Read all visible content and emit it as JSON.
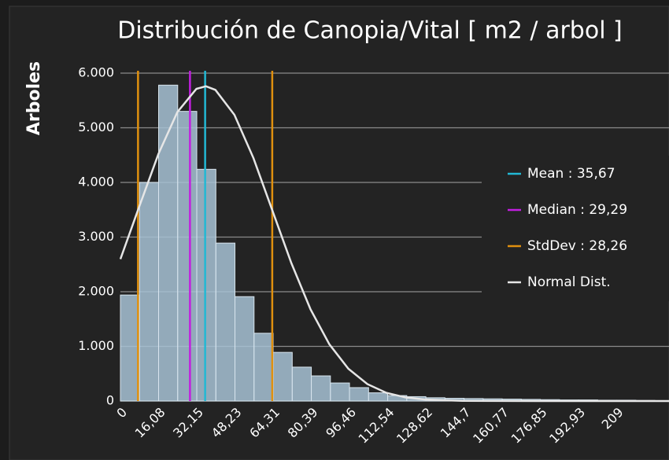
{
  "chart_data": {
    "type": "histogram",
    "title": "Distribución de Canopia/Vital [ m2 / arbol ]",
    "y_label": "Arboles",
    "bins": [
      0,
      8.04,
      16.08,
      24.12,
      32.15,
      40.19,
      48.23,
      56.27,
      64.31,
      72.35,
      80.39,
      88.43,
      96.46,
      104.5,
      112.54,
      120.58,
      128.62,
      136.66,
      144.7,
      152.74,
      160.77,
      168.81,
      176.85,
      184.89,
      192.93,
      200.97,
      209,
      217.04,
      225.08
    ],
    "values": [
      1940,
      4000,
      5780,
      5300,
      4240,
      2890,
      1910,
      1240,
      890,
      620,
      460,
      330,
      245,
      150,
      100,
      80,
      60,
      50,
      45,
      40,
      35,
      30,
      25,
      20,
      20,
      15,
      15,
      10
    ],
    "color": "#a7c2d5",
    "xlim": [
      0,
      231
    ],
    "xticks": [
      0,
      {
        "value": 16.08,
        "label": "16,08"
      },
      {
        "value": 32.15,
        "label": "32,15"
      },
      {
        "value": 48.23,
        "label": "48,23"
      },
      {
        "value": 64.31,
        "label": "64,31"
      },
      {
        "value": 80.39,
        "label": "80,39"
      },
      {
        "value": 96.46,
        "label": "96,46"
      },
      {
        "value": 112.54,
        "label": "112,54"
      },
      {
        "value": 128.62,
        "label": "128,62"
      },
      {
        "value": 144.7,
        "label": "144,7"
      },
      {
        "value": 160.77,
        "label": "160,77"
      },
      {
        "value": 176.85,
        "label": "176,85"
      },
      {
        "value": 192.93,
        "label": "192,93"
      },
      209
    ],
    "ylim": [
      0,
      6000
    ],
    "yticks": [
      0,
      {
        "value": 1000,
        "label": "1.000"
      },
      {
        "value": 2000,
        "label": "2.000"
      },
      {
        "value": 3000,
        "label": "3.000"
      },
      {
        "value": 4000,
        "label": "4.000"
      },
      {
        "value": 5000,
        "label": "5.000"
      },
      {
        "value": 6000,
        "label": "6.000"
      }
    ],
    "grid": true,
    "markers": [
      {
        "name": "Mean : 35,67",
        "value": 35.67,
        "color": "#22b8d4"
      },
      {
        "name": "Median : 29,29",
        "value": 29.29,
        "color": "#c21ee0"
      },
      {
        "name": "StdDev : 28,26",
        "value": 28.26,
        "color": "#e0900e"
      }
    ],
    "normal": {
      "name": "Normal Dist.",
      "color": "#e6e6e6",
      "x": [
        0,
        8,
        16,
        24,
        32,
        36,
        40,
        48,
        56,
        64,
        72,
        80,
        88,
        96,
        104,
        112,
        120,
        128,
        144,
        176,
        231
      ],
      "values": [
        2597,
        3567,
        4521,
        5289,
        5712,
        5760,
        5693,
        5237,
        4447,
        3485,
        2521,
        1683,
        1037,
        590,
        310,
        150,
        67,
        28,
        4,
        0,
        0
      ]
    }
  }
}
